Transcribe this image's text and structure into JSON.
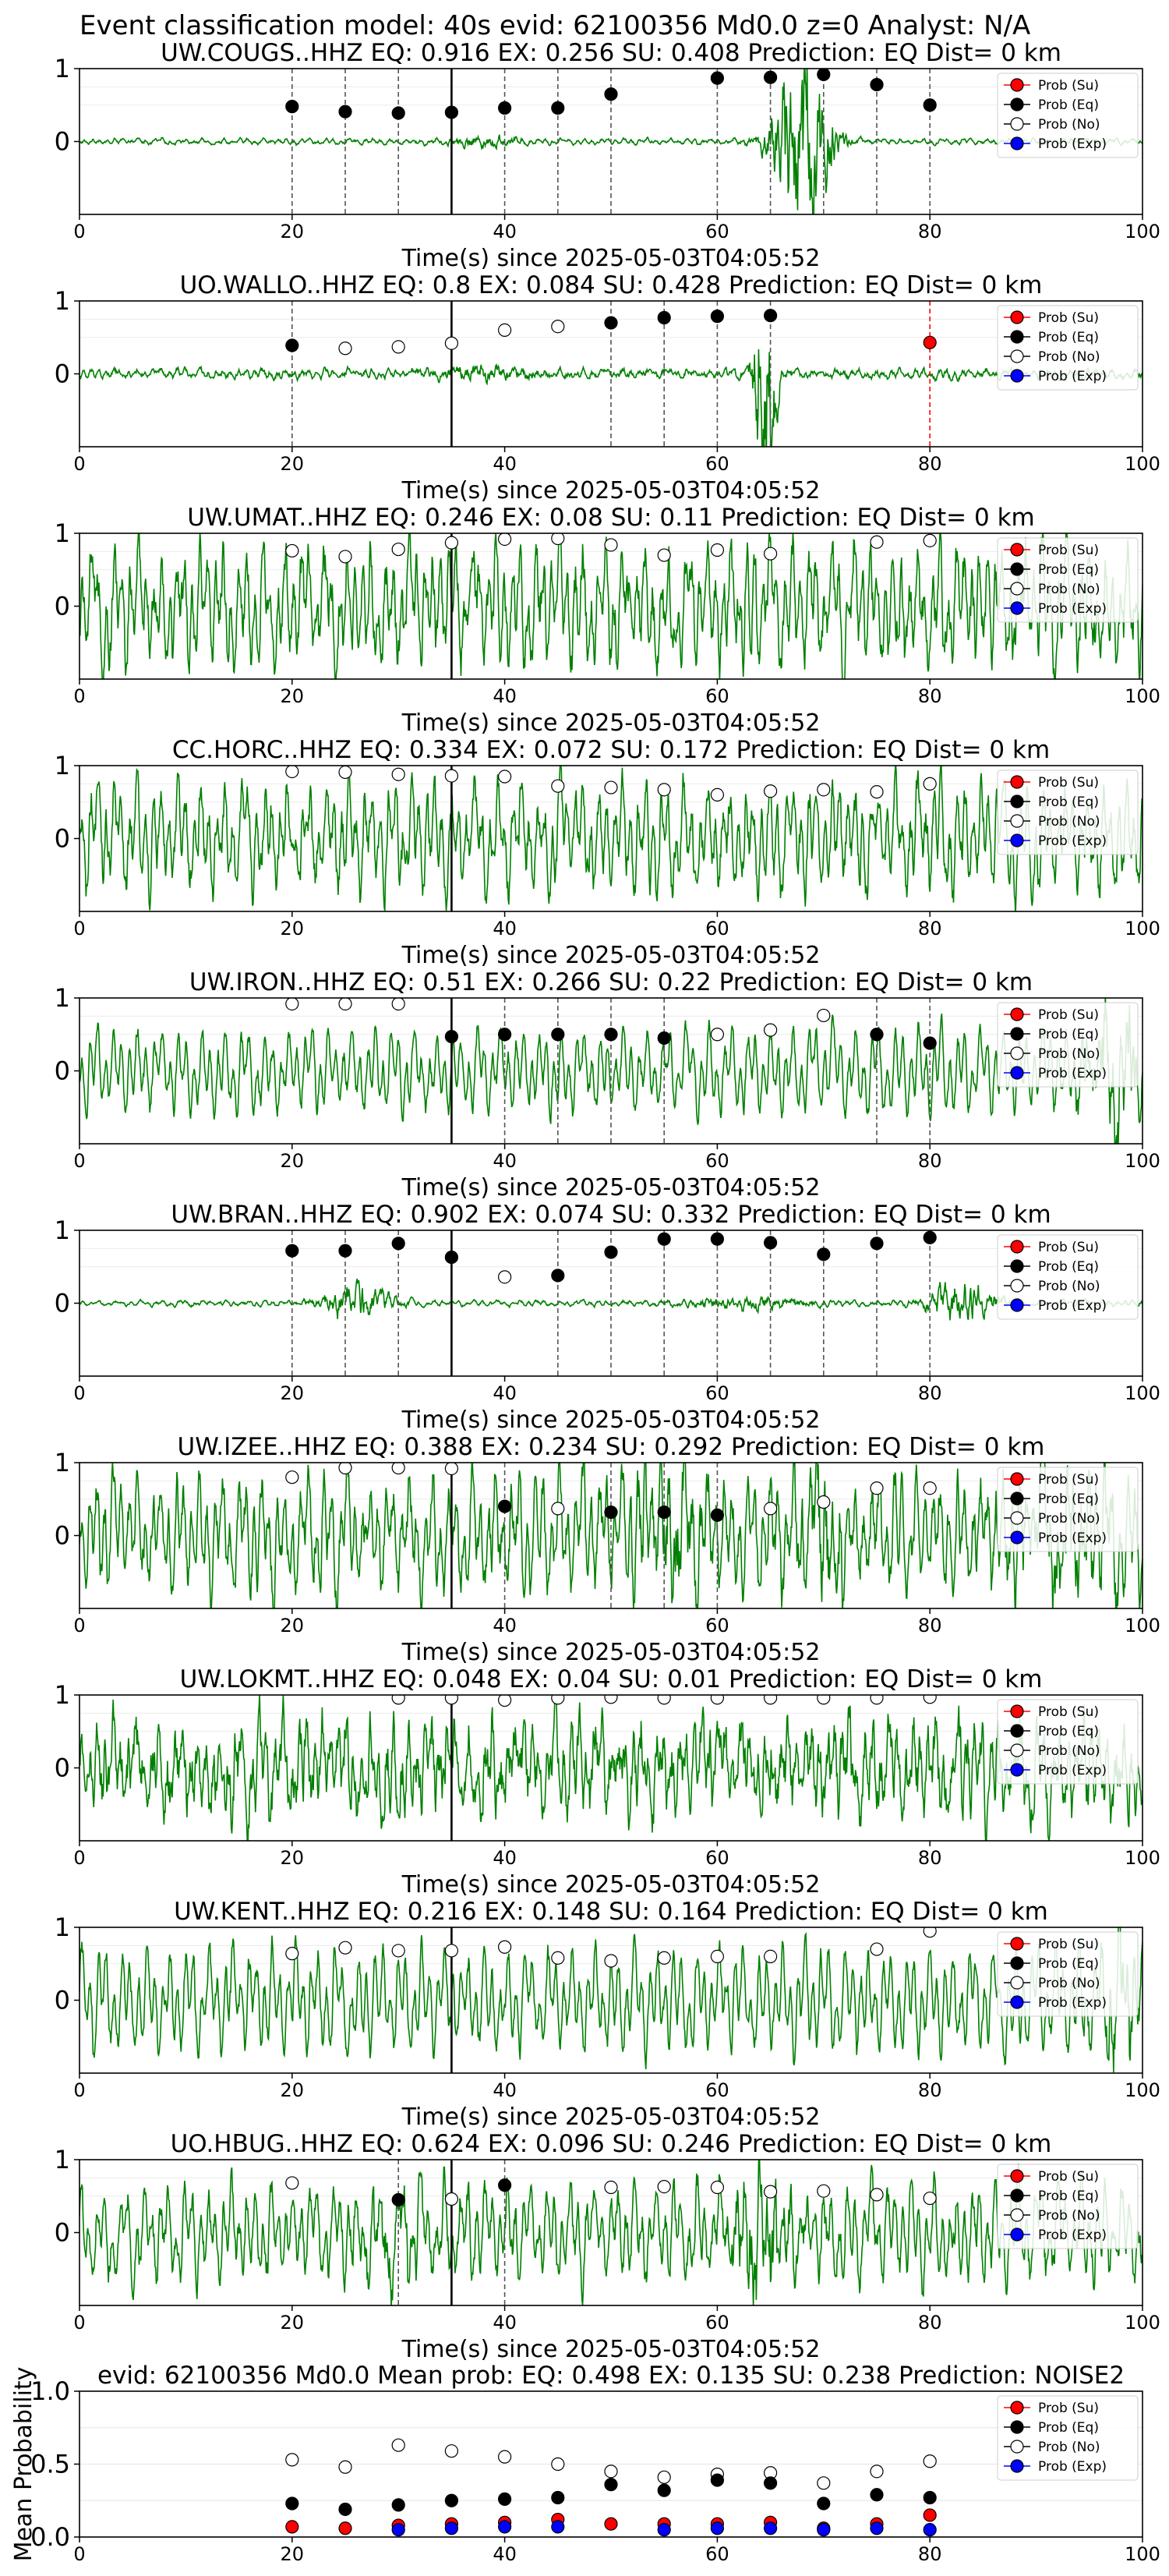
{
  "figure_title": "Event classification model: 40s evid: 62100356 Md0.0 z=0 Analyst: N/A",
  "legend_labels": [
    "Prob (Su)",
    "Prob (Eq)",
    "Prob (No)",
    "Prob (Exp)"
  ],
  "colors": {
    "su": "#ff0000",
    "eq": "#000000",
    "no": "#ffffff",
    "exp": "#0000ff",
    "trace": "#008000"
  },
  "chart_data": [
    {
      "type": "line",
      "title": "UW.COUGS..HHZ   EQ: 0.916  EX: 0.256  SU: 0.408   Prediction: EQ    Dist= 0 km",
      "xlabel": "Time(s) since 2025-05-03T04:05:52",
      "ylabel": "",
      "xlim": [
        0,
        100
      ],
      "ylim": [
        -1,
        1
      ],
      "xticks": [
        0,
        20,
        40,
        60,
        80,
        100
      ],
      "yticks": [
        0,
        1
      ],
      "arrival_time": 35,
      "signal": {
        "noise": 0.05,
        "smooth": 0.2,
        "bursts": [
          {
            "t": 68,
            "amp": 3.0,
            "width": 2.5
          },
          {
            "t": 38,
            "amp": 0.15,
            "width": 3
          }
        ]
      },
      "series": [
        {
          "name": "Prob (Eq)",
          "x": [
            20,
            25,
            30,
            35,
            40,
            45,
            50,
            60,
            65,
            70,
            75,
            80
          ],
          "values": [
            0.48,
            0.41,
            0.39,
            0.4,
            0.46,
            0.46,
            0.65,
            0.87,
            0.88,
            0.92,
            0.78,
            0.5
          ],
          "color": "eq",
          "vline": "dash"
        }
      ]
    },
    {
      "type": "line",
      "title": "UO.WALLO..HHZ   EQ: 0.8  EX: 0.084  SU: 0.428   Prediction: EQ    Dist= 0 km",
      "xlabel": "Time(s) since 2025-05-03T04:05:52",
      "ylabel": "",
      "xlim": [
        0,
        100
      ],
      "ylim": [
        -1,
        1
      ],
      "xticks": [
        0,
        20,
        40,
        60,
        80,
        100
      ],
      "yticks": [
        0,
        1
      ],
      "arrival_time": 35,
      "signal": {
        "noise": 0.1,
        "smooth": 0.3,
        "bursts": [
          {
            "t": 64.5,
            "amp": 4.0,
            "width": 0.9
          },
          {
            "t": 38,
            "amp": 0.15,
            "width": 4
          }
        ]
      },
      "series": [
        {
          "name": "Prob (Eq)",
          "x": [
            20,
            50,
            55,
            60,
            65
          ],
          "values": [
            0.39,
            0.7,
            0.77,
            0.79,
            0.8
          ],
          "color": "eq",
          "vline": "dash"
        },
        {
          "name": "Prob (No)",
          "x": [
            25,
            30,
            35,
            40,
            45
          ],
          "values": [
            0.35,
            0.37,
            0.42,
            0.6,
            0.65
          ],
          "color": "no",
          "vline": "none"
        },
        {
          "name": "Prob (Su)",
          "x": [
            80
          ],
          "values": [
            0.43
          ],
          "color": "su",
          "vline": "dashred"
        }
      ]
    },
    {
      "type": "line",
      "title": "UW.UMAT..HHZ   EQ: 0.246  EX: 0.08  SU: 0.11   Prediction: EQ    Dist= 0 km",
      "xlabel": "Time(s) since 2025-05-03T04:05:52",
      "ylabel": "",
      "xlim": [
        0,
        100
      ],
      "ylim": [
        -1,
        1
      ],
      "xticks": [
        0,
        20,
        40,
        60,
        80,
        100
      ],
      "yticks": [
        0,
        1
      ],
      "arrival_time": 35,
      "signal": {
        "noise": 0.55,
        "smooth": 0.9,
        "bursts": []
      },
      "series": [
        {
          "name": "Prob (No)",
          "x": [
            20,
            25,
            30,
            35,
            40,
            45,
            50,
            55,
            60,
            65,
            75,
            80
          ],
          "values": [
            0.76,
            0.68,
            0.78,
            0.87,
            0.92,
            0.93,
            0.84,
            0.7,
            0.77,
            0.72,
            0.88,
            0.9
          ],
          "color": "no",
          "vline": "none"
        }
      ]
    },
    {
      "type": "line",
      "title": "CC.HORC..HHZ   EQ: 0.334  EX: 0.072  SU: 0.172   Prediction: EQ    Dist= 0 km",
      "xlabel": "Time(s) since 2025-05-03T04:05:52",
      "ylabel": "",
      "xlim": [
        0,
        100
      ],
      "ylim": [
        -1,
        1
      ],
      "xticks": [
        0,
        20,
        40,
        60,
        80,
        100
      ],
      "yticks": [
        0,
        1
      ],
      "arrival_time": 35,
      "signal": {
        "noise": 0.45,
        "smooth": 0.85,
        "bursts": []
      },
      "series": [
        {
          "name": "Prob (No)",
          "x": [
            20,
            25,
            30,
            35,
            40,
            45,
            50,
            55,
            60,
            65,
            70,
            75,
            80
          ],
          "values": [
            0.92,
            0.91,
            0.88,
            0.86,
            0.85,
            0.72,
            0.7,
            0.67,
            0.6,
            0.65,
            0.67,
            0.64,
            0.75
          ],
          "color": "no",
          "vline": "none"
        }
      ]
    },
    {
      "type": "line",
      "title": "UW.IRON..HHZ   EQ: 0.51  EX: 0.266  SU: 0.22   Prediction: EQ    Dist= 0 km",
      "xlabel": "Time(s) since 2025-05-03T04:05:52",
      "ylabel": "",
      "xlim": [
        0,
        100
      ],
      "ylim": [
        -1,
        1
      ],
      "xticks": [
        0,
        20,
        40,
        60,
        80,
        100
      ],
      "yticks": [
        0,
        1
      ],
      "arrival_time": 35,
      "signal": {
        "noise": 0.22,
        "smooth": 0.7,
        "bursts": [
          {
            "t": 97,
            "amp": 0.9,
            "width": 2.5
          }
        ]
      },
      "series": [
        {
          "name": "Prob (No)",
          "x": [
            20,
            25,
            30,
            60,
            65,
            70
          ],
          "values": [
            0.92,
            0.92,
            0.92,
            0.5,
            0.56,
            0.76
          ],
          "color": "no",
          "vline": "none"
        },
        {
          "name": "Prob (Eq)",
          "x": [
            35,
            40,
            45,
            50,
            55,
            75,
            80
          ],
          "values": [
            0.47,
            0.5,
            0.5,
            0.5,
            0.45,
            0.5,
            0.38
          ],
          "color": "eq",
          "vline": "dash"
        }
      ]
    },
    {
      "type": "line",
      "title": "UW.BRAN..HHZ   EQ: 0.902  EX: 0.074  SU: 0.332   Prediction: EQ    Dist= 0 km",
      "xlabel": "Time(s) since 2025-05-03T04:05:52",
      "ylabel": "",
      "xlim": [
        0,
        100
      ],
      "ylim": [
        -1,
        1
      ],
      "xticks": [
        0,
        20,
        40,
        60,
        80,
        100
      ],
      "yticks": [
        0,
        1
      ],
      "arrival_time": 35,
      "signal": {
        "noise": 0.05,
        "smooth": 0.2,
        "bursts": [
          {
            "t": 26,
            "amp": 0.5,
            "width": 3
          },
          {
            "t": 83,
            "amp": 0.6,
            "width": 3
          },
          {
            "t": 63,
            "amp": 0.15,
            "width": 5
          }
        ]
      },
      "series": [
        {
          "name": "Prob (Eq)",
          "x": [
            20,
            25,
            30,
            35,
            45,
            50,
            55,
            60,
            65,
            70,
            75,
            80
          ],
          "values": [
            0.72,
            0.72,
            0.82,
            0.63,
            0.38,
            0.7,
            0.88,
            0.88,
            0.83,
            0.67,
            0.82,
            0.9
          ],
          "color": "eq",
          "vline": "dash"
        },
        {
          "name": "Prob (No)",
          "x": [
            40
          ],
          "values": [
            0.36
          ],
          "color": "no",
          "vline": "none"
        }
      ]
    },
    {
      "type": "line",
      "title": "UW.IZEE..HHZ   EQ: 0.388  EX: 0.234  SU: 0.292   Prediction: EQ    Dist= 0 km",
      "xlabel": "Time(s) since 2025-05-03T04:05:52",
      "ylabel": "",
      "xlim": [
        0,
        100
      ],
      "ylim": [
        -1,
        1
      ],
      "xticks": [
        0,
        20,
        40,
        60,
        80,
        100
      ],
      "yticks": [
        0,
        1
      ],
      "arrival_time": 35,
      "signal": {
        "noise": 0.45,
        "smooth": 0.9,
        "bursts": [
          {
            "t": 55,
            "amp": 0.6,
            "width": 3
          },
          {
            "t": 70,
            "amp": 0.6,
            "width": 3
          },
          {
            "t": 92,
            "amp": 0.5,
            "width": 6
          }
        ]
      },
      "series": [
        {
          "name": "Prob (No)",
          "x": [
            20,
            25,
            30,
            35,
            45,
            65,
            70,
            75,
            80
          ],
          "values": [
            0.8,
            0.93,
            0.93,
            0.92,
            0.37,
            0.37,
            0.46,
            0.65,
            0.65
          ],
          "color": "no",
          "vline": "none"
        },
        {
          "name": "Prob (Eq)",
          "x": [
            40,
            50,
            55,
            60
          ],
          "values": [
            0.4,
            0.32,
            0.32,
            0.28
          ],
          "color": "eq",
          "vline": "dash"
        }
      ]
    },
    {
      "type": "line",
      "title": "UW.LOKMT..HHZ   EQ: 0.048  EX: 0.04  SU: 0.01   Prediction: EQ    Dist= 0 km",
      "xlabel": "Time(s) since 2025-05-03T04:05:52",
      "ylabel": "",
      "xlim": [
        0,
        100
      ],
      "ylim": [
        -1,
        1
      ],
      "xticks": [
        0,
        20,
        40,
        60,
        80,
        100
      ],
      "yticks": [
        0,
        1
      ],
      "arrival_time": 35,
      "signal": {
        "noise": 0.6,
        "smooth": 0.6,
        "bursts": []
      },
      "series": [
        {
          "name": "Prob (No)",
          "x": [
            30,
            35,
            40,
            45,
            50,
            55,
            60,
            65,
            70,
            75,
            80
          ],
          "values": [
            0.96,
            0.96,
            0.93,
            0.96,
            0.97,
            0.96,
            0.96,
            0.96,
            0.96,
            0.96,
            0.97
          ],
          "color": "no",
          "vline": "none"
        }
      ]
    },
    {
      "type": "line",
      "title": "UW.KENT..HHZ   EQ: 0.216  EX: 0.148  SU: 0.164   Prediction: EQ    Dist= 0 km",
      "xlabel": "Time(s) since 2025-05-03T04:05:52",
      "ylabel": "",
      "xlim": [
        0,
        100
      ],
      "ylim": [
        -1,
        1
      ],
      "xticks": [
        0,
        20,
        40,
        60,
        80,
        100
      ],
      "yticks": [
        0,
        1
      ],
      "arrival_time": 35,
      "signal": {
        "noise": 0.28,
        "smooth": 0.85,
        "bursts": [
          {
            "t": 98,
            "amp": 0.7,
            "width": 2
          }
        ]
      },
      "series": [
        {
          "name": "Prob (No)",
          "x": [
            20,
            25,
            30,
            35,
            40,
            45,
            50,
            55,
            60,
            65,
            75,
            80
          ],
          "values": [
            0.64,
            0.72,
            0.68,
            0.68,
            0.73,
            0.58,
            0.54,
            0.58,
            0.6,
            0.6,
            0.7,
            0.95
          ],
          "color": "no",
          "vline": "none"
        }
      ]
    },
    {
      "type": "line",
      "title": "UO.HBUG..HHZ   EQ: 0.624  EX: 0.096  SU: 0.246   Prediction: EQ    Dist= 0 km",
      "xlabel": "Time(s) since 2025-05-03T04:05:52",
      "ylabel": "",
      "xlim": [
        0,
        100
      ],
      "ylim": [
        -1,
        1
      ],
      "xticks": [
        0,
        20,
        40,
        60,
        80,
        100
      ],
      "yticks": [
        0,
        1
      ],
      "arrival_time": 35,
      "signal": {
        "noise": 0.35,
        "smooth": 0.75,
        "bursts": [
          {
            "t": 64,
            "amp": 0.7,
            "width": 3
          },
          {
            "t": 30,
            "amp": 0.3,
            "width": 3
          }
        ]
      },
      "series": [
        {
          "name": "Prob (No)",
          "x": [
            20,
            35,
            50,
            55,
            60,
            65,
            70,
            75,
            80
          ],
          "values": [
            0.68,
            0.46,
            0.62,
            0.63,
            0.62,
            0.56,
            0.57,
            0.52,
            0.47
          ],
          "color": "no",
          "vline": "none"
        },
        {
          "name": "Prob (Eq)",
          "x": [
            30,
            40
          ],
          "values": [
            0.45,
            0.65
          ],
          "color": "eq",
          "vline": "dash"
        }
      ]
    },
    {
      "type": "scatter",
      "title": "evid: 62100356  Md0.0   Mean prob:   EQ: 0.498  EX: 0.135  SU: 0.238   Prediction: NOISE2",
      "xlabel": "",
      "ylabel": "Mean Probability",
      "xlim": [
        0,
        100
      ],
      "ylim": [
        0,
        1
      ],
      "xticks": [
        0,
        20,
        40,
        60,
        80,
        100
      ],
      "yticks": [
        0.0,
        0.5,
        1.0
      ],
      "ytick_labels": [
        "0.0",
        "0.5",
        "1.0"
      ],
      "series": [
        {
          "name": "Prob (No)",
          "x": [
            20,
            25,
            30,
            35,
            40,
            45,
            50,
            55,
            60,
            65,
            70,
            75,
            80
          ],
          "values": [
            0.53,
            0.48,
            0.63,
            0.59,
            0.55,
            0.5,
            0.45,
            0.41,
            0.43,
            0.44,
            0.37,
            0.45,
            0.52
          ],
          "color": "no"
        },
        {
          "name": "Prob (Eq)",
          "x": [
            20,
            25,
            30,
            35,
            40,
            45,
            50,
            55,
            60,
            65,
            70,
            75,
            80
          ],
          "values": [
            0.23,
            0.19,
            0.22,
            0.25,
            0.26,
            0.27,
            0.36,
            0.32,
            0.39,
            0.37,
            0.23,
            0.29,
            0.27
          ],
          "color": "eq"
        },
        {
          "name": "Prob (Su)",
          "x": [
            20,
            25,
            30,
            35,
            40,
            45,
            50,
            55,
            60,
            65,
            70,
            75,
            80
          ],
          "values": [
            0.07,
            0.06,
            0.08,
            0.09,
            0.1,
            0.12,
            0.09,
            0.09,
            0.09,
            0.1,
            0.06,
            0.09,
            0.15
          ],
          "color": "su"
        },
        {
          "name": "Prob (Exp)",
          "x": [
            30,
            35,
            40,
            45,
            55,
            60,
            65,
            70,
            75,
            80
          ],
          "values": [
            0.05,
            0.06,
            0.07,
            0.07,
            0.05,
            0.06,
            0.06,
            0.05,
            0.06,
            0.05
          ],
          "color": "exp"
        }
      ]
    }
  ]
}
